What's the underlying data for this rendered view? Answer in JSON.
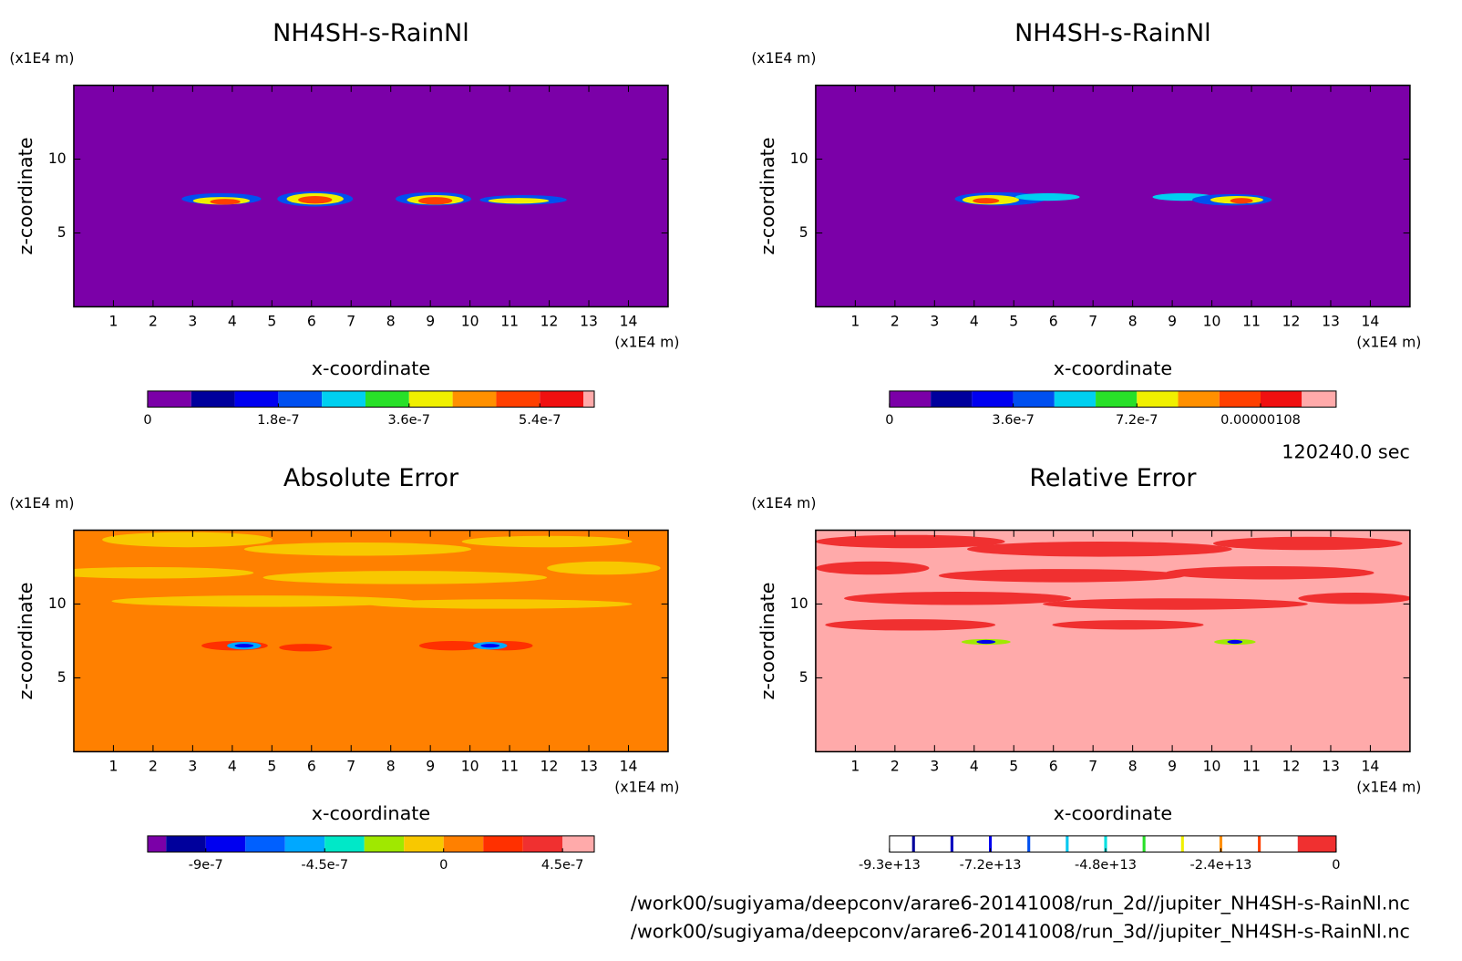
{
  "chart_data": [
    {
      "type": "contour",
      "title": "NH4SH-s-RainNl",
      "x_label": "x-coordinate",
      "y_label": "z-coordinate",
      "x_unit": "(x1E4 m)",
      "y_unit": "(x1E4 m)",
      "xlim": [
        0,
        15
      ],
      "ylim": [
        0,
        15
      ],
      "xticks": [
        1,
        2,
        3,
        4,
        5,
        6,
        7,
        8,
        9,
        10,
        11,
        12,
        13,
        14
      ],
      "yticks": [
        5,
        10
      ],
      "background": "#7b00a8",
      "levels": [
        0,
        6e-08,
        1.2e-07,
        1.8e-07,
        2.4e-07,
        3e-07,
        3.6e-07,
        4.2e-07,
        4.8e-07,
        5.4e-07,
        6e-07,
        6.15e-07
      ],
      "colors": [
        "#7b00a8",
        "#00009c",
        "#0000f0",
        "#0050f0",
        "#00d0f0",
        "#28e028",
        "#f0f000",
        "#ff9000",
        "#ff4000",
        "#f01010",
        "#ffaaaa"
      ],
      "cbar_ticks": [
        0,
        1.8e-07,
        3.6e-07,
        5.4e-07
      ]
    },
    {
      "type": "contour",
      "title": "NH4SH-s-RainNl",
      "x_label": "x-coordinate",
      "y_label": "z-coordinate",
      "x_unit": "(x1E4 m)",
      "y_unit": "(x1E4 m)",
      "xlim": [
        0,
        15
      ],
      "ylim": [
        0,
        15
      ],
      "xticks": [
        1,
        2,
        3,
        4,
        5,
        6,
        7,
        8,
        9,
        10,
        11,
        12,
        13,
        14
      ],
      "yticks": [
        5,
        10
      ],
      "background": "#7b00a8",
      "levels": [
        0,
        1.2e-07,
        2.4e-07,
        3.6e-07,
        4.8e-07,
        6e-07,
        7.2e-07,
        8.4e-07,
        9.6e-07,
        1.08e-06,
        1.2e-06,
        1.3e-06
      ],
      "colors": [
        "#7b00a8",
        "#00009c",
        "#0000f0",
        "#0050f0",
        "#00d0f0",
        "#28e028",
        "#f0f000",
        "#ff9000",
        "#ff4000",
        "#f01010",
        "#ffaaaa"
      ],
      "cbar_ticks": [
        0,
        3.6e-07,
        7.2e-07,
        1.08e-06
      ]
    },
    {
      "type": "contour",
      "title": "Absolute Error",
      "x_label": "x-coordinate",
      "y_label": "z-coordinate",
      "x_unit": "(x1E4 m)",
      "y_unit": "(x1E4 m)",
      "xlim": [
        0,
        15
      ],
      "ylim": [
        0,
        15
      ],
      "xticks": [
        1,
        2,
        3,
        4,
        5,
        6,
        7,
        8,
        9,
        10,
        11,
        12,
        13,
        14
      ],
      "yticks": [
        5,
        10
      ],
      "background": "#ff8000",
      "levels": [
        -1.12e-06,
        -1.05e-06,
        -9e-07,
        -7.5e-07,
        -6e-07,
        -4.5e-07,
        -3e-07,
        -1.5e-07,
        0,
        1.5e-07,
        3e-07,
        4.5e-07,
        5.7e-07
      ],
      "colors": [
        "#7b00a8",
        "#00009c",
        "#0000f0",
        "#0060ff",
        "#00a8ff",
        "#00e8c8",
        "#a0e800",
        "#f8c800",
        "#ff8000",
        "#ff3000",
        "#f03030",
        "#ffaaaa"
      ],
      "cbar_ticks": [
        -9e-07,
        -4.5e-07,
        0,
        4.5e-07
      ]
    },
    {
      "type": "contour",
      "title": "Relative Error",
      "x_label": "x-coordinate",
      "y_label": "z-coordinate",
      "x_unit": "(x1E4 m)",
      "y_unit": "(x1E4 m)",
      "xlim": [
        0,
        15
      ],
      "ylim": [
        0,
        15
      ],
      "xticks": [
        1,
        2,
        3,
        4,
        5,
        6,
        7,
        8,
        9,
        10,
        11,
        12,
        13,
        14
      ],
      "yticks": [
        5,
        10
      ],
      "background": "#ffaaaa",
      "levels": [
        -93000000000000.0,
        -88000000000000.0,
        -80000000000000.0,
        -72000000000000.0,
        -64000000000000.0,
        -56000000000000.0,
        -48000000000000.0,
        -40000000000000.0,
        -32000000000000.0,
        -24000000000000.0,
        -16000000000000.0,
        -8000000000000.0,
        0
      ],
      "colors": [
        "#ffffff",
        "#ffffff",
        "#ffffff",
        "#ffffff",
        "#ffffff",
        "#ffffff",
        "#ffffff",
        "#ffffff",
        "#ffffff",
        "#ffffff",
        "#ffffff",
        "#f03030"
      ],
      "line_colors": [
        "#00009c",
        "#0000c0",
        "#0000f0",
        "#0050f0",
        "#00c8f0",
        "#00e0e0",
        "#28e028",
        "#f0f000",
        "#ff9000",
        "#ff4000"
      ],
      "cbar_ticks": [
        {
          "value": -93000000000000.0,
          "label": "-9.3e+13"
        },
        {
          "value": -72000000000000.0,
          "label": "-7.2e+13"
        },
        {
          "value": -48000000000000.0,
          "label": "-4.8e+13"
        },
        {
          "value": -24000000000000.0,
          "label": "-2.4e+13"
        },
        0
      ]
    }
  ],
  "footer": {
    "time": "120240.0 sec",
    "files": [
      "/work00/sugiyama/deepconv/arare6-20141008/run_2d//jupiter_NH4SH-s-RainNl.nc",
      "/work00/sugiyama/deepconv/arare6-20141008/run_3d//jupiter_NH4SH-s-RainNl.nc"
    ]
  }
}
